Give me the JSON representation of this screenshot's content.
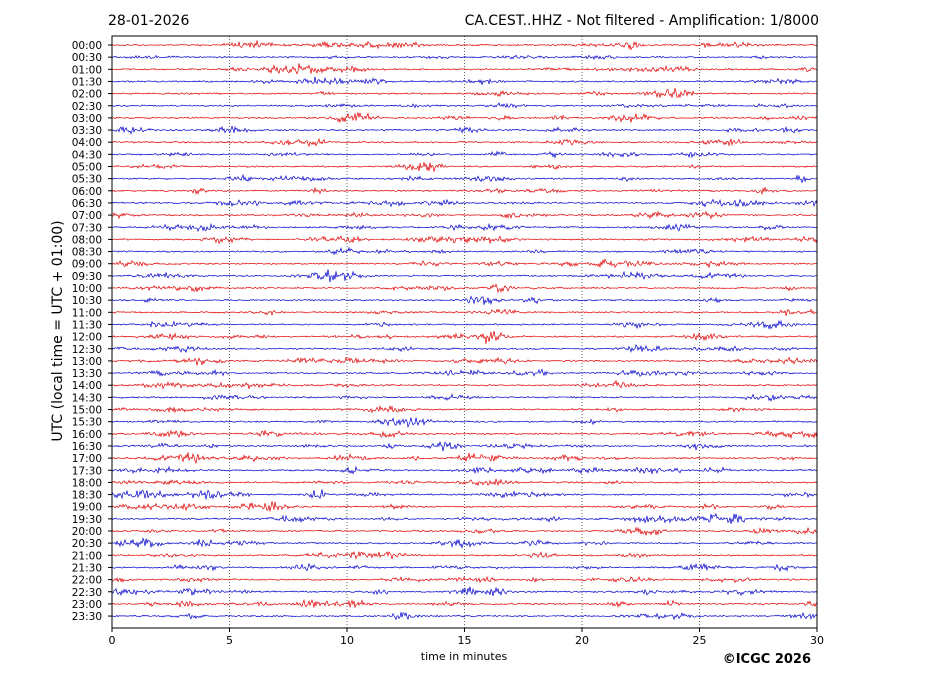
{
  "chart_data": {
    "type": "line",
    "title_left": "28-01-2026",
    "title_right": "CA.CEST..HHZ - Not filtered - Amplification: 1/8000",
    "xlabel": "time in minutes",
    "ylabel": "UTC (local time = UTC + 01:00)",
    "xlim": [
      0,
      30
    ],
    "x_ticks": [
      "0",
      "5",
      "10",
      "15",
      "20",
      "25",
      "30"
    ],
    "x_tick_values": [
      0,
      5,
      10,
      15,
      20,
      25,
      30
    ],
    "grid": "vertical dotted at x ticks",
    "row_labels": [
      "00:00",
      "00:30",
      "01:00",
      "01:30",
      "02:00",
      "02:30",
      "03:00",
      "03:30",
      "04:00",
      "04:30",
      "05:00",
      "05:30",
      "06:00",
      "06:30",
      "07:00",
      "07:30",
      "08:00",
      "08:30",
      "09:00",
      "09:30",
      "10:00",
      "10:30",
      "11:00",
      "11:30",
      "12:00",
      "12:30",
      "13:00",
      "13:30",
      "14:00",
      "14:30",
      "15:00",
      "15:30",
      "16:00",
      "16:30",
      "17:00",
      "17:30",
      "18:00",
      "18:30",
      "19:00",
      "19:30",
      "20:00",
      "20:30",
      "21:00",
      "21:30",
      "22:00",
      "22:30",
      "23:00",
      "23:30"
    ],
    "trace_colors": [
      "#e00000",
      "#0000cc"
    ],
    "copyright": "©ICGC 2026"
  }
}
